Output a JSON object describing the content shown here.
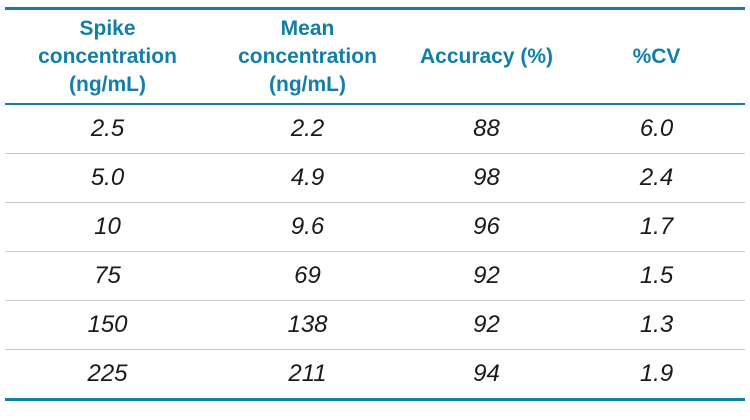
{
  "colors": {
    "accent_teal": "#147fa6",
    "row_divider": "#c9c9c9",
    "body_text": "#1a1a1a",
    "background": "#ffffff"
  },
  "table": {
    "headers": [
      {
        "label": "Spike concentration (ng/mL)",
        "lines": [
          "Spike",
          "concentration",
          "(ng/mL)"
        ]
      },
      {
        "label": "Mean concentration (ng/mL)",
        "lines": [
          "Mean",
          "concentration",
          "(ng/mL)"
        ]
      },
      {
        "label": "Accuracy (%)",
        "lines": [
          "Accuracy (%)"
        ]
      },
      {
        "label": "%CV",
        "lines": [
          "%CV"
        ]
      }
    ],
    "rows": [
      [
        "2.5",
        "2.2",
        "88",
        "6.0"
      ],
      [
        "5.0",
        "4.9",
        "98",
        "2.4"
      ],
      [
        "10",
        "9.6",
        "96",
        "1.7"
      ],
      [
        "75",
        "69",
        "92",
        "1.5"
      ],
      [
        "150",
        "138",
        "92",
        "1.3"
      ],
      [
        "225",
        "211",
        "94",
        "1.9"
      ]
    ]
  },
  "chart_data": {
    "type": "table",
    "columns": [
      "Spike concentration (ng/mL)",
      "Mean concentration (ng/mL)",
      "Accuracy (%)",
      "%CV"
    ],
    "rows": [
      [
        2.5,
        2.2,
        88,
        6.0
      ],
      [
        5.0,
        4.9,
        98,
        2.4
      ],
      [
        10,
        9.6,
        96,
        1.7
      ],
      [
        75,
        69,
        92,
        1.5
      ],
      [
        150,
        138,
        92,
        1.3
      ],
      [
        225,
        211,
        94,
        1.9
      ]
    ]
  }
}
